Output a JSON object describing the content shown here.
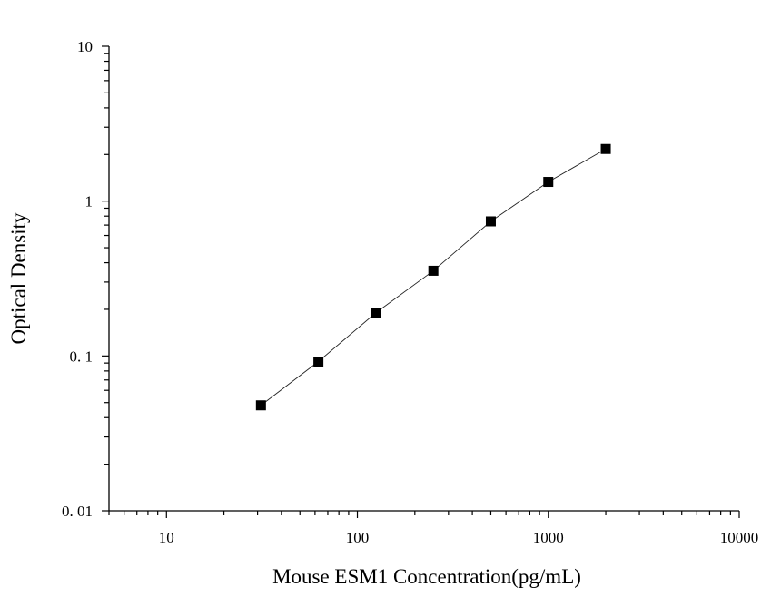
{
  "chart_data": {
    "type": "scatter",
    "title": "",
    "xlabel": "Mouse ESM1 Concentration(pg/mL)",
    "ylabel": "Optical Density",
    "x_scale": "log",
    "y_scale": "log",
    "xlim": [
      5,
      10000
    ],
    "ylim": [
      0.01,
      10
    ],
    "x_ticks": [
      10,
      100,
      1000,
      10000
    ],
    "x_tick_labels": [
      "10",
      "100",
      "1000",
      "10000"
    ],
    "y_ticks": [
      0.01,
      0.1,
      1,
      10
    ],
    "y_tick_labels": [
      "0. 01",
      "0. 1",
      "1",
      "10"
    ],
    "grid": false,
    "legend": "none",
    "marker": "square",
    "fitted_line": true,
    "color": "#000000",
    "series": [
      {
        "x": [
          31.25,
          62.5,
          125,
          250,
          500,
          1000,
          2000
        ],
        "y": [
          0.048,
          0.092,
          0.19,
          0.355,
          0.74,
          1.33,
          2.17
        ]
      }
    ]
  }
}
